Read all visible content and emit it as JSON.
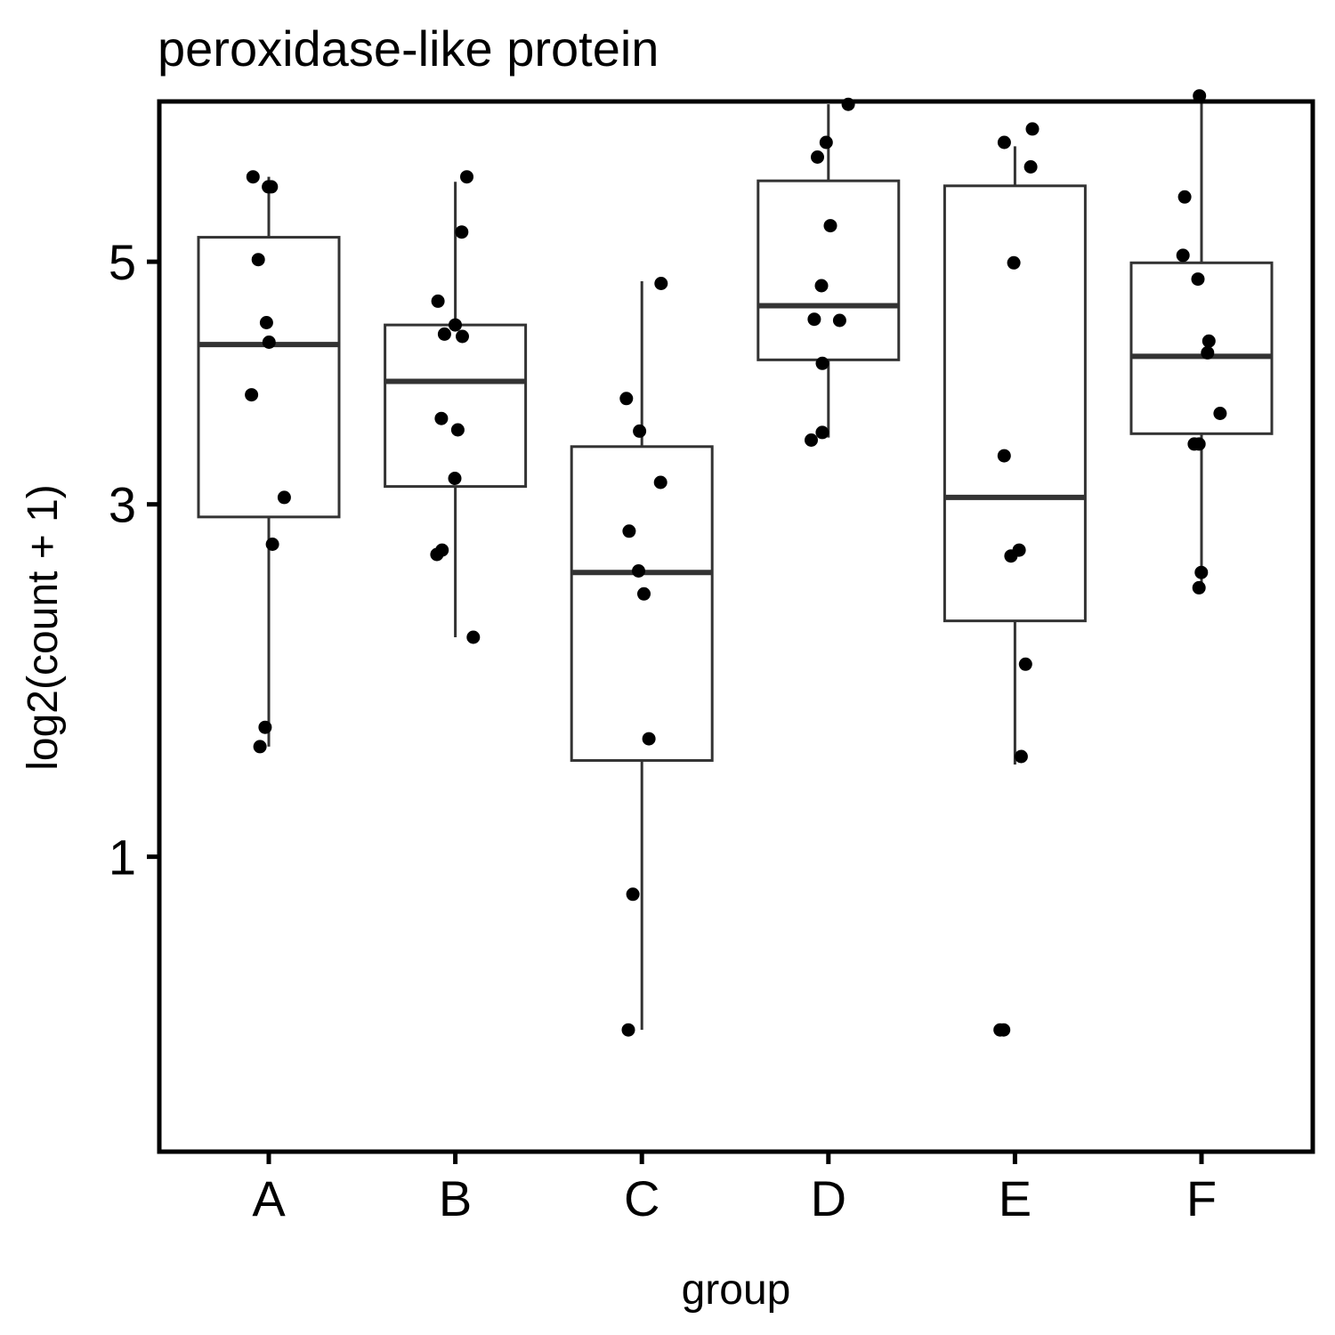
{
  "chart_data": {
    "type": "boxplot",
    "title": "peroxidase-like protein",
    "xlabel": "group",
    "ylabel": "log2(count + 1)",
    "y_scale": "sqrt",
    "ylim": [
      0.15,
      6.6
    ],
    "yticks": [
      1,
      3,
      5
    ],
    "grid": false,
    "legend": "none",
    "categories": [
      "A",
      "B",
      "C",
      "D",
      "E",
      "F"
    ],
    "boxes": [
      {
        "group": "A",
        "lower_whisker": 1.51,
        "q1": 2.91,
        "median": 4.26,
        "q3": 5.23,
        "upper_whisker": 5.82
      },
      {
        "group": "B",
        "lower_whisker": 2.12,
        "q1": 3.13,
        "median": 3.95,
        "q3": 4.43,
        "upper_whisker": 5.77
      },
      {
        "group": "C",
        "lower_whisker": 0.41,
        "q1": 1.44,
        "median": 2.53,
        "q3": 3.43,
        "upper_whisker": 4.82
      },
      {
        "group": "D",
        "lower_whisker": 3.5,
        "q1": 4.13,
        "median": 4.6,
        "q3": 5.78,
        "upper_whisker": 6.57
      },
      {
        "group": "E",
        "lower_whisker": 1.42,
        "q1": 2.22,
        "median": 3.05,
        "q3": 5.73,
        "upper_whisker": 6.13
      },
      {
        "group": "F",
        "lower_whisker": 2.42,
        "q1": 3.53,
        "median": 4.16,
        "q3": 4.99,
        "upper_whisker": 6.66
      }
    ],
    "points": [
      {
        "group": "A",
        "values": [
          5.72,
          5.72,
          5.82,
          5.02,
          4.45,
          4.28,
          3.84,
          3.05,
          2.72,
          1.61,
          1.51
        ]
      },
      {
        "group": "B",
        "values": [
          5.82,
          5.28,
          4.64,
          4.43,
          4.35,
          4.33,
          3.65,
          3.56,
          3.19,
          2.68,
          2.65,
          2.12
        ]
      },
      {
        "group": "C",
        "values": [
          4.8,
          3.81,
          3.55,
          3.16,
          2.81,
          2.54,
          2.39,
          1.55,
          0.85,
          0.41
        ]
      },
      {
        "group": "D",
        "values": [
          6.57,
          6.17,
          6.02,
          5.34,
          4.78,
          4.48,
          4.47,
          4.1,
          3.54,
          3.48
        ]
      },
      {
        "group": "E",
        "values": [
          6.31,
          6.17,
          5.92,
          4.99,
          3.36,
          2.68,
          2.64,
          1.96,
          1.46,
          0.41,
          0.41
        ]
      },
      {
        "group": "F",
        "values": [
          6.66,
          5.62,
          5.06,
          4.84,
          4.29,
          4.19,
          3.69,
          3.45,
          3.45,
          2.53,
          2.43
        ]
      }
    ]
  }
}
